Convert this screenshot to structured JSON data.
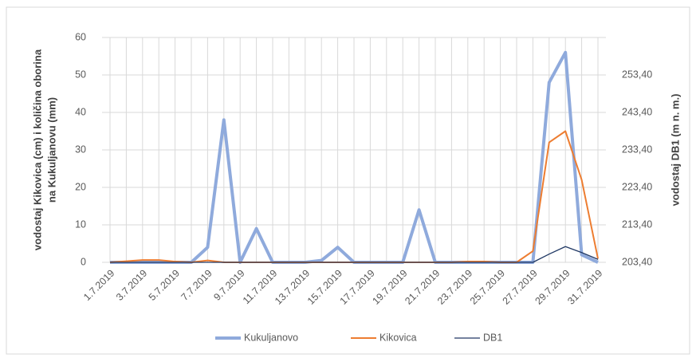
{
  "chart_data": {
    "type": "line",
    "y_label": [
      "vodostaj Kikovica (cm) i količina oborina",
      "na Kukuljanovu (mm)"
    ],
    "y2_label": "vodostaj DB1 (m n. m.)",
    "categories": [
      "1.7.2019",
      null,
      "3.7.2019",
      null,
      "5.7.2019",
      null,
      "7.7.2019",
      null,
      "9.7.2019",
      null,
      "11.7.2019",
      null,
      "13.7.2019",
      null,
      "15.7.2019",
      null,
      "17.7.2019",
      null,
      "19.7.2019",
      null,
      "21.7.2019",
      null,
      "23.7.2019",
      null,
      "25.7.2019",
      null,
      "27.7.2019",
      null,
      "29.7.2019",
      null,
      "31.7.2019"
    ],
    "ylim": [
      0,
      60
    ],
    "yticks": [
      0,
      10,
      20,
      30,
      40,
      50,
      60
    ],
    "y2lim": [
      203.4,
      263.4
    ],
    "y2ticks": [
      {
        "value": 203.4,
        "label": "203,40"
      },
      {
        "value": 213.4,
        "label": "213,40"
      },
      {
        "value": 223.4,
        "label": "223,40"
      },
      {
        "value": 233.4,
        "label": "233,40"
      },
      {
        "value": 243.4,
        "label": "243,40"
      },
      {
        "value": 253.4,
        "label": "253,40"
      }
    ],
    "grid": true,
    "legend": "bottom",
    "series": [
      {
        "name": "Kukuljanovo",
        "color": "#8faadc",
        "width": 4,
        "values": [
          0,
          0,
          0,
          0,
          0,
          0,
          4,
          38,
          0,
          9,
          0,
          0,
          0,
          0.5,
          4,
          0,
          0,
          0,
          0,
          14,
          0,
          0,
          0,
          0,
          0,
          0,
          0,
          48,
          56,
          2,
          0
        ]
      },
      {
        "name": "Kikovica",
        "color": "#ed7d31",
        "width": 2,
        "values": [
          0,
          0.3,
          0.6,
          0.6,
          0.2,
          0,
          0.5,
          0,
          0,
          0,
          0,
          0,
          0,
          0,
          0,
          0,
          0,
          0,
          0,
          0,
          0,
          0,
          0.2,
          0.2,
          0,
          0,
          3,
          32,
          35,
          22,
          1
        ]
      },
      {
        "name": "DB1",
        "color": "#203864",
        "width": 1.3,
        "axis": "y2",
        "values": [
          203.4,
          203.4,
          203.4,
          203.4,
          203.4,
          203.4,
          203.4,
          203.4,
          203.4,
          203.4,
          203.4,
          203.4,
          203.4,
          203.4,
          203.4,
          203.4,
          203.4,
          203.4,
          203.4,
          203.4,
          203.4,
          203.4,
          203.4,
          203.4,
          203.4,
          203.4,
          203.4,
          205.6,
          207.6,
          206,
          204.2
        ]
      }
    ]
  }
}
